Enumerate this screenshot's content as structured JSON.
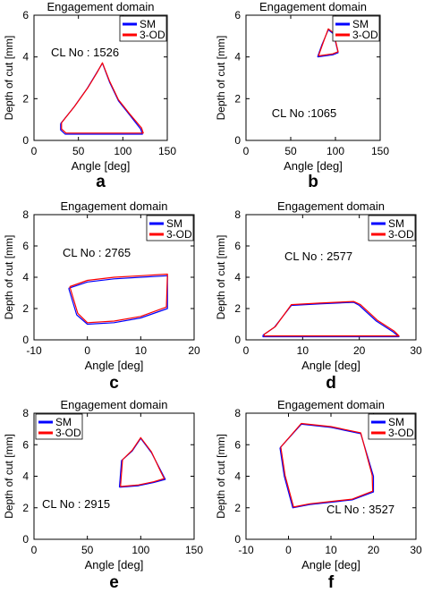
{
  "colors": {
    "sm": "#0000ff",
    "od": "#ff0000",
    "axis": "#000000",
    "background": "#ffffff"
  },
  "chart_data": [
    {
      "panel": "a",
      "type": "line",
      "title": "Engagement domain",
      "xlabel": "Angle [deg]",
      "ylabel": "Depth of cut [mm]",
      "xlim": [
        0,
        150
      ],
      "ylim": [
        0,
        6
      ],
      "xticks": [
        "0",
        "50",
        "100",
        "150"
      ],
      "yticks": [
        "0",
        "2",
        "4",
        "6"
      ],
      "annotation": "CL No : 1526",
      "grid": false,
      "legend_position": "top-right",
      "series": [
        {
          "name": "SM",
          "points": [
            [
              30,
              0.8
            ],
            [
              45,
              1.6
            ],
            [
              60,
              2.5
            ],
            [
              70,
              3.2
            ],
            [
              77,
              3.7
            ],
            [
              85,
              2.8
            ],
            [
              95,
              1.9
            ],
            [
              108,
              1.2
            ],
            [
              120,
              0.55
            ],
            [
              122,
              0.3
            ],
            [
              35,
              0.3
            ],
            [
              30,
              0.5
            ],
            [
              30,
              0.8
            ]
          ]
        },
        {
          "name": "3-OD",
          "points": [
            [
              31,
              0.85
            ],
            [
              46,
              1.65
            ],
            [
              61,
              2.55
            ],
            [
              71,
              3.25
            ],
            [
              77,
              3.72
            ],
            [
              85,
              2.85
            ],
            [
              95,
              1.95
            ],
            [
              108,
              1.25
            ],
            [
              121,
              0.6
            ],
            [
              123,
              0.35
            ],
            [
              36,
              0.35
            ],
            [
              31,
              0.55
            ],
            [
              31,
              0.85
            ]
          ]
        }
      ]
    },
    {
      "panel": "b",
      "type": "line",
      "title": "Engagement domain",
      "xlabel": "Angle [deg]",
      "ylabel": "Depth of cut [mm]",
      "xlim": [
        0,
        150
      ],
      "ylim": [
        0,
        6
      ],
      "xticks": [
        "0",
        "50",
        "100",
        "150"
      ],
      "yticks": [
        "0",
        "2",
        "4",
        "6"
      ],
      "annotation": "CL No :1065",
      "grid": false,
      "legend_position": "top-right",
      "series": [
        {
          "name": "SM",
          "points": [
            [
              80,
              4.0
            ],
            [
              85,
              4.6
            ],
            [
              92,
              5.3
            ],
            [
              98,
              5.1
            ],
            [
              103,
              4.2
            ],
            [
              97,
              4.1
            ],
            [
              80,
              4.0
            ]
          ]
        },
        {
          "name": "3-OD",
          "points": [
            [
              81,
              4.05
            ],
            [
              86,
              4.65
            ],
            [
              92,
              5.35
            ],
            [
              98,
              5.15
            ],
            [
              103,
              4.25
            ],
            [
              97,
              4.15
            ],
            [
              81,
              4.05
            ]
          ]
        }
      ]
    },
    {
      "panel": "c",
      "type": "line",
      "title": "Engagement domain",
      "xlabel": "Angle [deg]",
      "ylabel": "Depth of cut [mm]",
      "xlim": [
        -10,
        20
      ],
      "ylim": [
        0,
        8
      ],
      "xticks": [
        "-10",
        "0",
        "10",
        "20"
      ],
      "yticks": [
        "0",
        "2",
        "4",
        "6",
        "8"
      ],
      "annotation": "CL No : 2765",
      "grid": false,
      "legend_position": "top-right",
      "series": [
        {
          "name": "SM",
          "points": [
            [
              -3.5,
              3.3
            ],
            [
              0,
              3.7
            ],
            [
              5,
              3.9
            ],
            [
              10,
              4.0
            ],
            [
              15,
              4.1
            ],
            [
              15,
              2.0
            ],
            [
              10,
              1.4
            ],
            [
              5,
              1.1
            ],
            [
              0,
              1.0
            ],
            [
              -2,
              1.6
            ],
            [
              -3.5,
              3.3
            ]
          ]
        },
        {
          "name": "3-OD",
          "points": [
            [
              -3.3,
              3.4
            ],
            [
              0,
              3.8
            ],
            [
              5,
              4.0
            ],
            [
              10,
              4.1
            ],
            [
              15,
              4.2
            ],
            [
              14.8,
              2.1
            ],
            [
              10,
              1.5
            ],
            [
              5,
              1.2
            ],
            [
              0,
              1.1
            ],
            [
              -1.8,
              1.7
            ],
            [
              -3.3,
              3.4
            ]
          ]
        }
      ]
    },
    {
      "panel": "d",
      "type": "line",
      "title": "Engagement domain",
      "xlabel": "Angle [deg]",
      "ylabel": "Depth of cut [mm]",
      "xlim": [
        0,
        30
      ],
      "ylim": [
        0,
        8
      ],
      "xticks": [
        "0",
        "10",
        "20",
        "30"
      ],
      "yticks": [
        "0",
        "2",
        "4",
        "6",
        "8"
      ],
      "annotation": "CL No : 2577",
      "grid": false,
      "legend_position": "top-right",
      "series": [
        {
          "name": "SM",
          "points": [
            [
              3,
              0.3
            ],
            [
              5,
              0.8
            ],
            [
              8,
              2.2
            ],
            [
              13,
              2.3
            ],
            [
              19,
              2.4
            ],
            [
              20,
              2.2
            ],
            [
              23,
              1.2
            ],
            [
              26,
              0.5
            ],
            [
              27,
              0.2
            ],
            [
              3,
              0.2
            ],
            [
              3,
              0.3
            ]
          ]
        },
        {
          "name": "3-OD",
          "points": [
            [
              3.2,
              0.35
            ],
            [
              5.2,
              0.85
            ],
            [
              8,
              2.25
            ],
            [
              13,
              2.35
            ],
            [
              19,
              2.45
            ],
            [
              20.2,
              2.25
            ],
            [
              23.2,
              1.25
            ],
            [
              26.2,
              0.55
            ],
            [
              27,
              0.25
            ],
            [
              3.2,
              0.25
            ],
            [
              3.2,
              0.35
            ]
          ]
        }
      ]
    },
    {
      "panel": "e",
      "type": "line",
      "title": "Engagement domain",
      "xlabel": "Angle [deg]",
      "ylabel": "Depth of cut [mm]",
      "xlim": [
        0,
        150
      ],
      "ylim": [
        0,
        8
      ],
      "xticks": [
        "0",
        "50",
        "100",
        "150"
      ],
      "yticks": [
        "0",
        "2",
        "4",
        "6",
        "8"
      ],
      "annotation": "CL No : 2915",
      "grid": false,
      "legend_position": "top-left",
      "series": [
        {
          "name": "SM",
          "points": [
            [
              80,
              3.3
            ],
            [
              82,
              5.0
            ],
            [
              92,
              5.6
            ],
            [
              100,
              6.4
            ],
            [
              110,
              5.5
            ],
            [
              120,
              4.2
            ],
            [
              123,
              3.8
            ],
            [
              112,
              3.6
            ],
            [
              98,
              3.4
            ],
            [
              80,
              3.3
            ]
          ]
        },
        {
          "name": "3-OD",
          "points": [
            [
              81,
              3.35
            ],
            [
              83,
              5.05
            ],
            [
              92,
              5.65
            ],
            [
              100,
              6.45
            ],
            [
              110,
              5.55
            ],
            [
              119,
              4.25
            ],
            [
              122,
              3.85
            ],
            [
              112,
              3.65
            ],
            [
              98,
              3.45
            ],
            [
              81,
              3.35
            ]
          ]
        }
      ]
    },
    {
      "panel": "f",
      "type": "line",
      "title": "Engagement domain",
      "xlabel": "Angle [deg]",
      "ylabel": "Depth of cut [mm]",
      "xlim": [
        -10,
        30
      ],
      "ylim": [
        0,
        8
      ],
      "xticks": [
        "-10",
        "0",
        "10",
        "20",
        "30"
      ],
      "yticks": [
        "0",
        "2",
        "4",
        "6",
        "8"
      ],
      "annotation": "CL No : 3527",
      "grid": false,
      "legend_position": "top-right",
      "series": [
        {
          "name": "SM",
          "points": [
            [
              -2,
              5.8
            ],
            [
              3,
              7.3
            ],
            [
              10,
              7.1
            ],
            [
              17,
              6.7
            ],
            [
              20,
              4.0
            ],
            [
              20,
              3.0
            ],
            [
              15,
              2.5
            ],
            [
              5,
              2.2
            ],
            [
              1,
              2.0
            ],
            [
              -1,
              4.0
            ],
            [
              -2,
              5.8
            ]
          ]
        },
        {
          "name": "3-OD",
          "points": [
            [
              -1.8,
              5.85
            ],
            [
              3,
              7.35
            ],
            [
              10,
              7.15
            ],
            [
              17,
              6.75
            ],
            [
              19.7,
              4.05
            ],
            [
              19.8,
              3.05
            ],
            [
              15,
              2.55
            ],
            [
              5,
              2.25
            ],
            [
              1.2,
              2.05
            ],
            [
              -0.8,
              4.05
            ],
            [
              -1.8,
              5.85
            ]
          ]
        }
      ]
    }
  ]
}
